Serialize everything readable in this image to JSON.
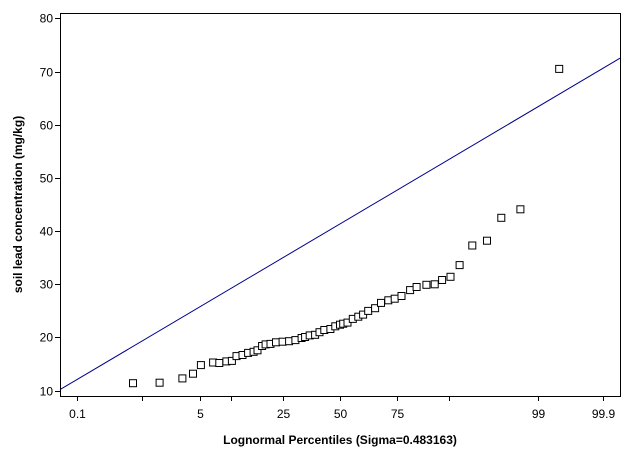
{
  "chart_data": {
    "type": "scatter",
    "title": "",
    "xlabel": "Lognormal Percentiles (Sigma=0.483163)",
    "ylabel": "soil lead concentration (mg/kg)",
    "x_scale": "normal-probability",
    "xlim": [
      0.05,
      99.95
    ],
    "ylim": [
      9,
      81
    ],
    "x_ticks": [
      0.1,
      1,
      5,
      10,
      25,
      50,
      75,
      90,
      99,
      99.9
    ],
    "x_tick_labels": [
      "0.1",
      "",
      "5",
      "",
      "25",
      "50",
      "75",
      "",
      "99",
      "99.9"
    ],
    "y_ticks": [
      10,
      20,
      30,
      40,
      50,
      60,
      70,
      80
    ],
    "y_tick_labels": [
      "10",
      "20",
      "30",
      "40",
      "50",
      "60",
      "70",
      "80"
    ],
    "grid": false,
    "legend": "none",
    "colors": {
      "points": "#000000",
      "fit_line": "#00008b",
      "frame": "#000000"
    },
    "series": [
      {
        "kind": "points",
        "marker": "open-square",
        "points": [
          [
            0.75,
            11.4
          ],
          [
            1.7,
            11.5
          ],
          [
            3.2,
            12.3
          ],
          [
            4.2,
            13.2
          ],
          [
            5.1,
            14.8
          ],
          [
            6.8,
            15.3
          ],
          [
            7.8,
            15.2
          ],
          [
            9.1,
            15.5
          ],
          [
            10.2,
            15.6
          ],
          [
            11.2,
            16.5
          ],
          [
            12.6,
            16.7
          ],
          [
            14.0,
            17.1
          ],
          [
            15.5,
            17.3
          ],
          [
            16.6,
            17.6
          ],
          [
            18.0,
            18.4
          ],
          [
            19.1,
            18.7
          ],
          [
            20.7,
            18.8
          ],
          [
            22.6,
            19.1
          ],
          [
            25.0,
            19.2
          ],
          [
            27.5,
            19.3
          ],
          [
            30.0,
            19.5
          ],
          [
            32.6,
            19.9
          ],
          [
            34.1,
            20.1
          ],
          [
            36.1,
            20.4
          ],
          [
            38.5,
            20.5
          ],
          [
            40.5,
            21.0
          ],
          [
            42.7,
            21.4
          ],
          [
            45.5,
            21.6
          ],
          [
            47.8,
            22.1
          ],
          [
            50.0,
            22.4
          ],
          [
            51.5,
            22.6
          ],
          [
            53.5,
            22.8
          ],
          [
            56.0,
            23.5
          ],
          [
            58.5,
            23.9
          ],
          [
            60.7,
            24.3
          ],
          [
            63.0,
            25.0
          ],
          [
            66.0,
            25.5
          ],
          [
            68.5,
            26.5
          ],
          [
            71.5,
            27.0
          ],
          [
            74.0,
            27.3
          ],
          [
            76.5,
            27.8
          ],
          [
            79.5,
            28.9
          ],
          [
            81.6,
            29.5
          ],
          [
            84.5,
            29.9
          ],
          [
            86.7,
            30.0
          ],
          [
            88.5,
            30.8
          ],
          [
            90.3,
            31.4
          ],
          [
            92.0,
            33.6
          ],
          [
            94.0,
            37.3
          ],
          [
            95.8,
            38.2
          ],
          [
            97.1,
            42.5
          ],
          [
            98.3,
            44.1
          ],
          [
            99.5,
            70.5
          ]
        ]
      },
      {
        "kind": "fit-line",
        "points": [
          [
            0.05,
            10.2
          ],
          [
            99.95,
            72.5
          ]
        ]
      }
    ]
  }
}
